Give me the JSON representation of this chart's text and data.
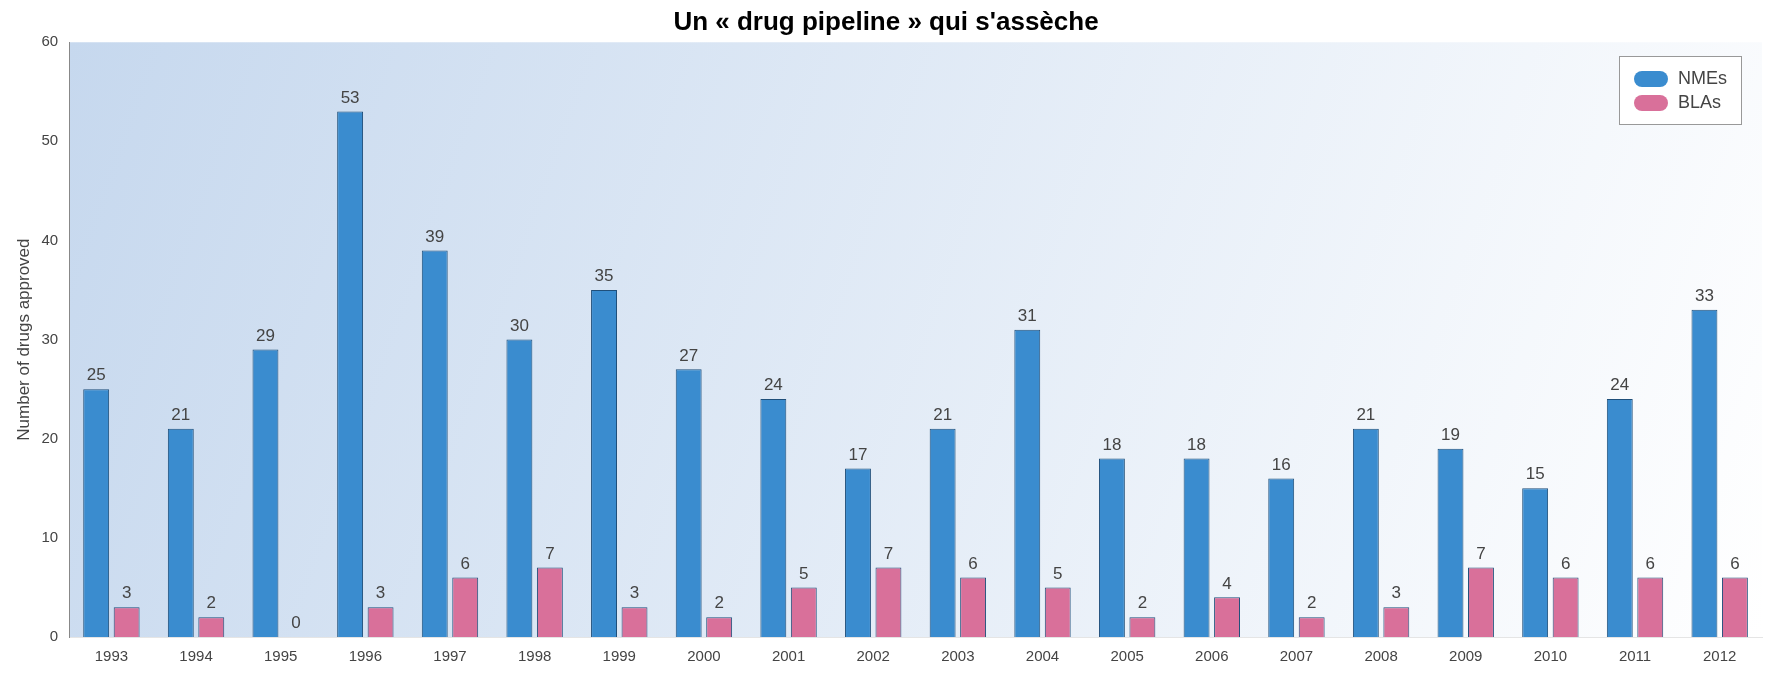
{
  "chart_data": {
    "type": "bar",
    "title": "Un « drug pipeline » qui s'assèche",
    "ylabel": "Number of drugs approved",
    "categories": [
      "1993",
      "1994",
      "1995",
      "1996",
      "1997",
      "1998",
      "1999",
      "2000",
      "2001",
      "2002",
      "2003",
      "2004",
      "2005",
      "2006",
      "2007",
      "2008",
      "2009",
      "2010",
      "2011",
      "2012"
    ],
    "series": [
      {
        "name": "NMEs",
        "color": "#3a8ccf",
        "values": [
          25,
          21,
          29,
          53,
          39,
          30,
          35,
          27,
          24,
          17,
          21,
          31,
          18,
          18,
          16,
          21,
          19,
          15,
          24,
          33
        ]
      },
      {
        "name": "BLAs",
        "color": "#d9709a",
        "values": [
          3,
          2,
          0,
          3,
          6,
          7,
          3,
          2,
          5,
          7,
          6,
          5,
          2,
          4,
          2,
          3,
          7,
          6,
          6,
          6
        ]
      }
    ],
    "ylim": [
      0,
      60
    ],
    "yticks": [
      0,
      10,
      20,
      30,
      40,
      50,
      60
    ],
    "data_labels": true,
    "legend": "top right",
    "grid": false
  }
}
